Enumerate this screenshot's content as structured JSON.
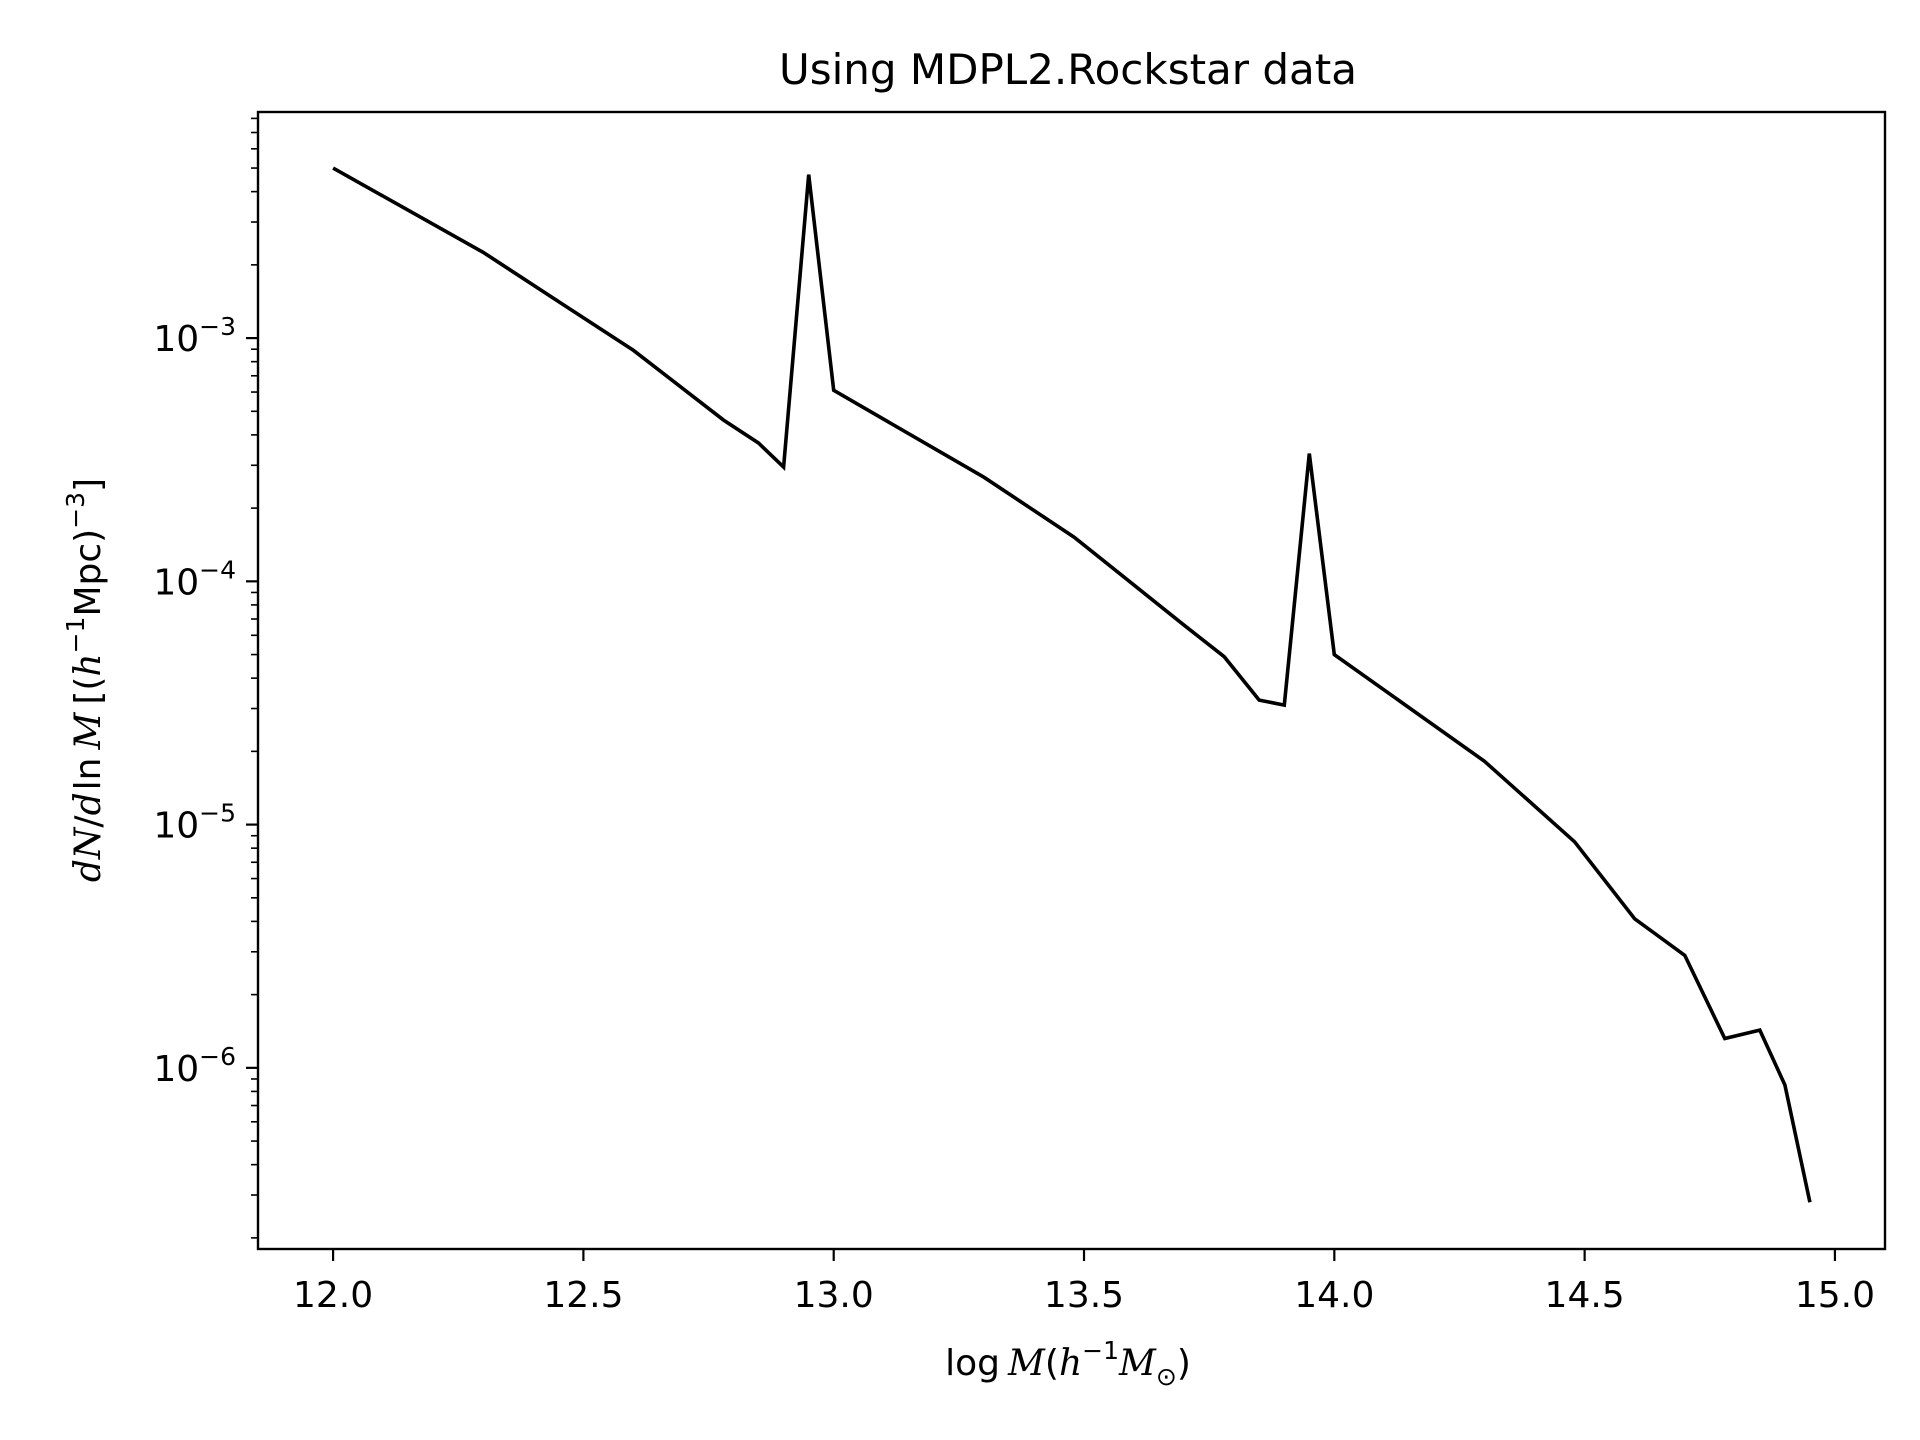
{
  "chart_data": {
    "type": "line",
    "title": "Using MDPL2.Rockstar data",
    "xlabel": "log M(h⁻¹M⊙)",
    "ylabel": "dN/d ln M [(h⁻¹Mpc)⁻³]",
    "xlim": [
      11.85,
      15.1
    ],
    "ylim": [
      1.8e-07,
      0.0085
    ],
    "yscale": "log",
    "xticks": [
      "12.0",
      "12.5",
      "13.0",
      "13.5",
      "14.0",
      "14.5",
      "15.0"
    ],
    "yticks": [
      {
        "value": 0.001,
        "base": "10",
        "exp": "−3"
      },
      {
        "value": 0.0001,
        "base": "10",
        "exp": "−4"
      },
      {
        "value": 1e-05,
        "base": "10",
        "exp": "−5"
      },
      {
        "value": 1e-06,
        "base": "10",
        "exp": "−6"
      }
    ],
    "grid": false,
    "line_color": "#000000",
    "series": [
      {
        "x": [
          12.0,
          12.3,
          12.47,
          12.6,
          12.78,
          12.85,
          12.9,
          12.95,
          13.0,
          13.3,
          13.48,
          13.7,
          13.78,
          13.85,
          13.9,
          13.95,
          14.0,
          14.3,
          14.48,
          14.6,
          14.7,
          14.78,
          14.85,
          14.9,
          14.95
        ],
        "y": [
          0.005,
          0.00225,
          0.00133,
          0.00089,
          0.00046,
          0.00037,
          0.000295,
          0.0047,
          0.00061,
          0.000268,
          0.000152,
          6.6e-05,
          4.9e-05,
          3.25e-05,
          3.1e-05,
          0.000335,
          5e-05,
          1.82e-05,
          8.5e-06,
          4.1e-06,
          2.9e-06,
          1.32e-06,
          1.43e-06,
          8.5e-07,
          2.8e-07
        ]
      }
    ]
  }
}
